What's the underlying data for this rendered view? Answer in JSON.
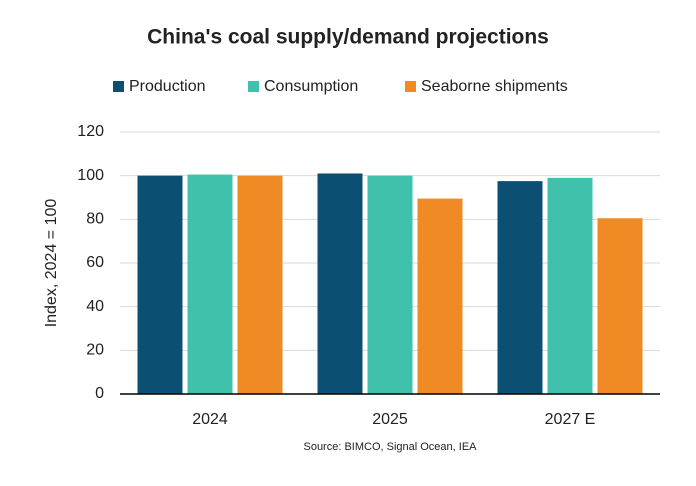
{
  "chart_data": {
    "type": "bar",
    "title": "China's coal supply/demand projections",
    "y_label": "Index, 2024 = 100",
    "source": "Source: BIMCO, Signal Ocean, IEA",
    "categories": [
      "2024",
      "2025",
      "2027 E"
    ],
    "series": [
      {
        "name": "Production",
        "color": "#0b4f73",
        "values": [
          100,
          101,
          97.5
        ]
      },
      {
        "name": "Consumption",
        "color": "#3fc1ab",
        "values": [
          100.5,
          100,
          99
        ]
      },
      {
        "name": "Seaborne shipments",
        "color": "#f08a24",
        "values": [
          100,
          89.5,
          80.5
        ]
      }
    ],
    "ylim": [
      0,
      120
    ],
    "yticks": [
      0,
      20,
      40,
      60,
      80,
      100,
      120
    ],
    "grid": true,
    "legend": "top"
  }
}
